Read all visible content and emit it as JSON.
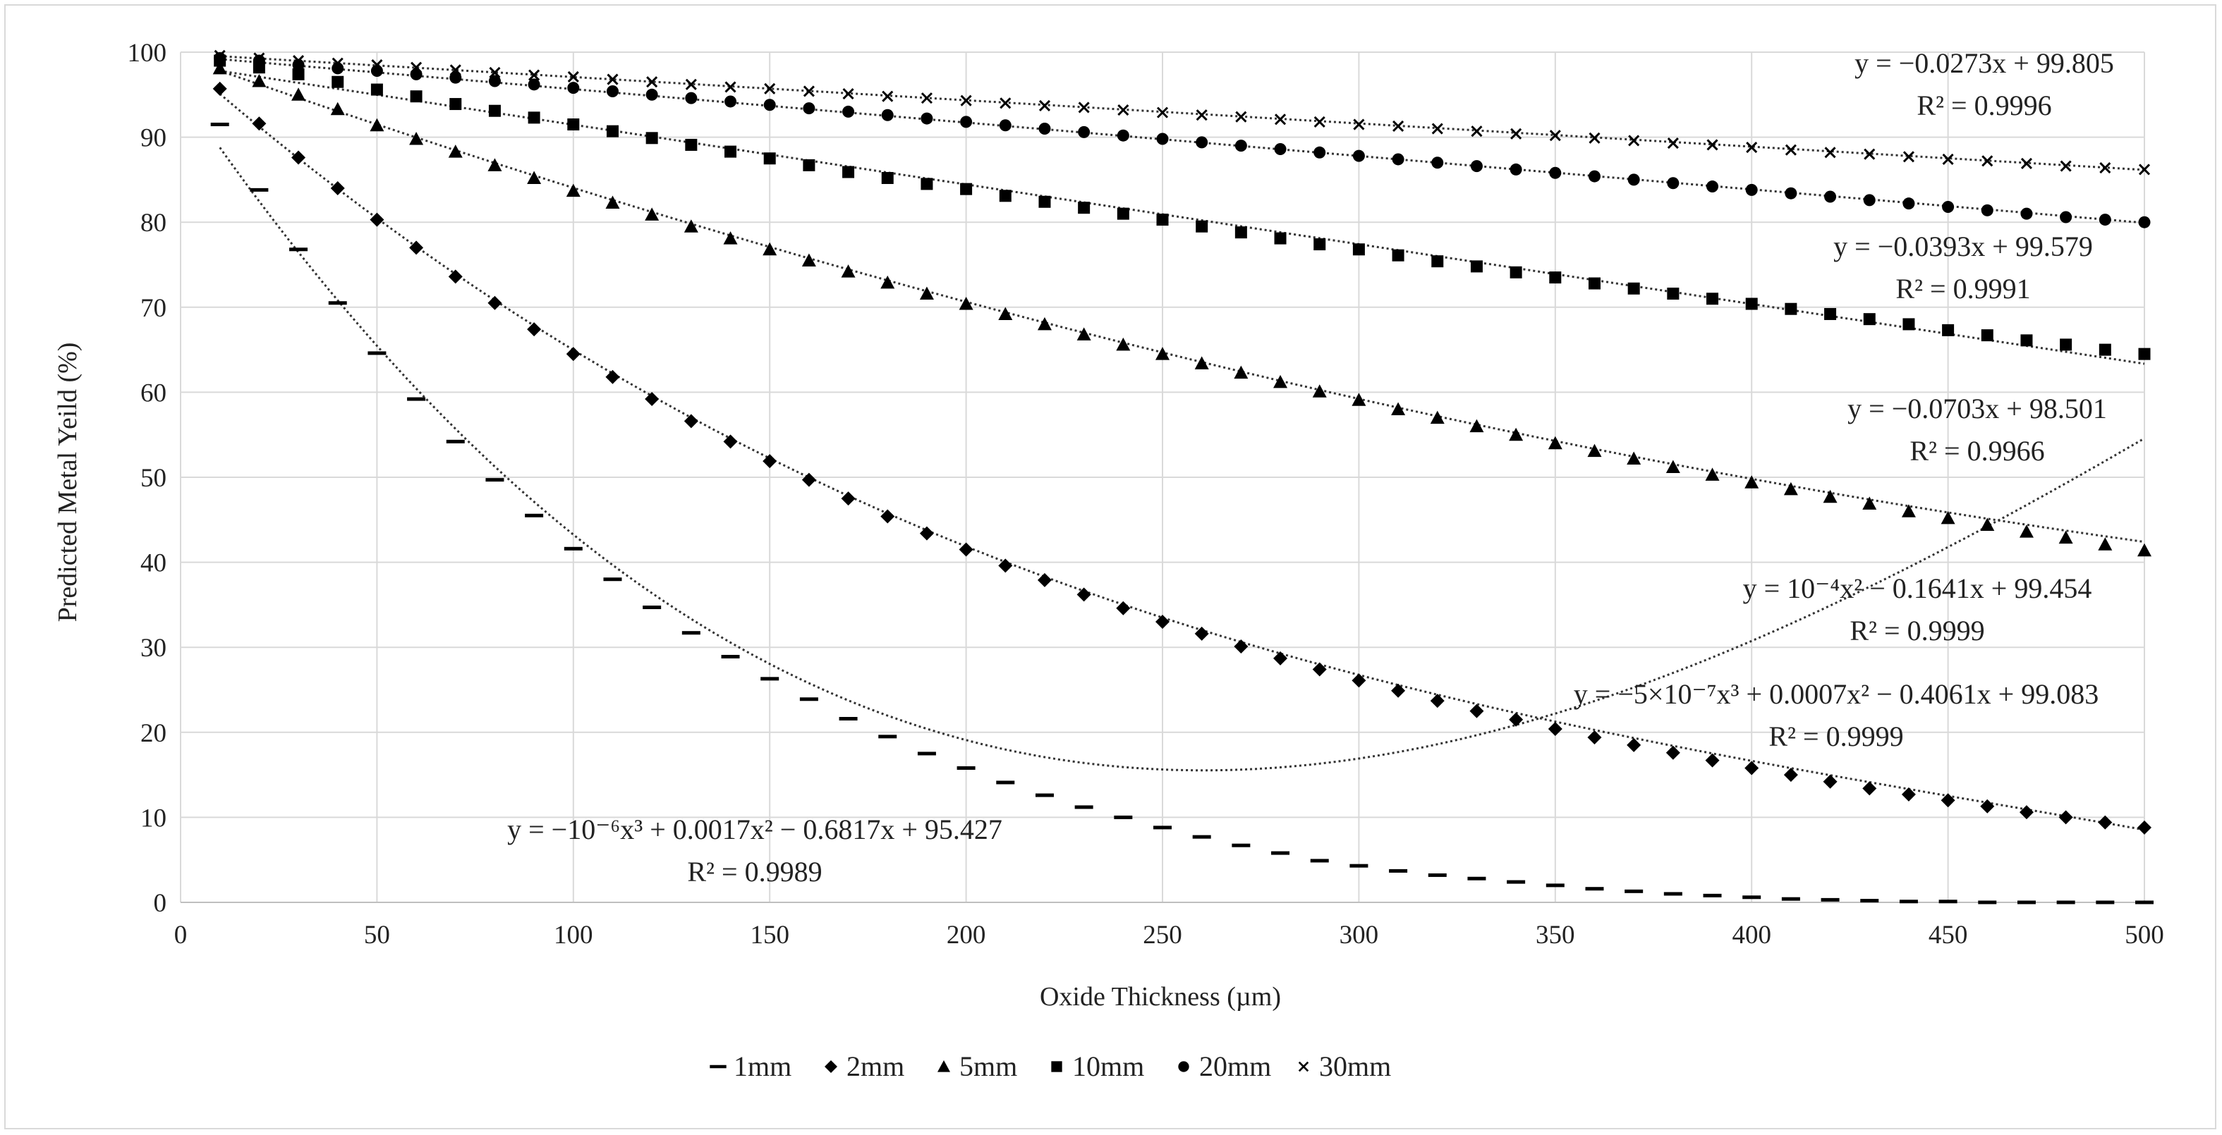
{
  "chart_data": {
    "type": "scatter",
    "title": "",
    "xlabel": "Oxide Thickness (µm)",
    "ylabel": "Predicted Metal Yeild (%)",
    "xlim": [
      0,
      500
    ],
    "ylim": [
      0,
      100
    ],
    "x_ticks": [
      "0",
      "50",
      "100",
      "150",
      "200",
      "250",
      "300",
      "350",
      "400",
      "450",
      "500"
    ],
    "y_ticks": [
      "0",
      "10",
      "20",
      "30",
      "40",
      "50",
      "60",
      "70",
      "80",
      "90",
      "100"
    ],
    "grid": "horizontal and vertical major gridlines",
    "legend_position": "bottom",
    "x": [
      10,
      20,
      30,
      40,
      50,
      60,
      70,
      80,
      90,
      100,
      110,
      120,
      130,
      140,
      150,
      160,
      170,
      180,
      190,
      200,
      210,
      220,
      230,
      240,
      250,
      260,
      270,
      280,
      290,
      300,
      310,
      320,
      330,
      340,
      350,
      360,
      370,
      380,
      390,
      400,
      410,
      420,
      430,
      440,
      450,
      460,
      470,
      480,
      490,
      500
    ],
    "series": [
      {
        "name": "1mm",
        "marker": "dash",
        "values": [
          91.5,
          83.8,
          76.8,
          70.5,
          64.6,
          59.2,
          54.2,
          49.7,
          45.5,
          41.6,
          38.0,
          34.7,
          31.7,
          28.9,
          26.3,
          23.9,
          21.6,
          19.5,
          17.5,
          15.8,
          14.1,
          12.6,
          11.2,
          10.0,
          8.8,
          7.7,
          6.7,
          5.8,
          4.9,
          4.3,
          3.7,
          3.2,
          2.8,
          2.4,
          2.0,
          1.6,
          1.3,
          1.0,
          0.8,
          0.6,
          0.4,
          0.3,
          0.2,
          0.1,
          0.1,
          0.0,
          0.0,
          0.0,
          0.0,
          0.0
        ],
        "trendline": "y = −10⁻⁶x³ + 0.0017x² − 0.6817x + 95.427",
        "r2": "R² = 0.9989"
      },
      {
        "name": "2mm",
        "marker": "diamond",
        "values": [
          95.7,
          91.6,
          87.6,
          84.0,
          80.3,
          77.0,
          73.6,
          70.5,
          67.4,
          64.5,
          61.8,
          59.2,
          56.6,
          54.2,
          51.9,
          49.7,
          47.5,
          45.4,
          43.4,
          41.5,
          39.6,
          37.9,
          36.2,
          34.6,
          33.0,
          31.6,
          30.1,
          28.7,
          27.4,
          26.1,
          24.9,
          23.7,
          22.5,
          21.5,
          20.4,
          19.4,
          18.5,
          17.6,
          16.7,
          15.8,
          15.0,
          14.2,
          13.4,
          12.7,
          12.0,
          11.3,
          10.6,
          10.0,
          9.4,
          8.8
        ],
        "trendline": "y = −5×10⁻⁷x³ + 0.0007x² − 0.4061x + 99.083",
        "r2": "R² = 0.9999"
      },
      {
        "name": "5mm",
        "marker": "triangle",
        "values": [
          98.1,
          96.6,
          95.0,
          93.3,
          91.4,
          89.8,
          88.3,
          86.7,
          85.2,
          83.7,
          82.3,
          80.9,
          79.5,
          78.1,
          76.8,
          75.5,
          74.2,
          72.9,
          71.6,
          70.4,
          69.2,
          68.0,
          66.8,
          65.6,
          64.5,
          63.4,
          62.3,
          61.2,
          60.1,
          59.1,
          58.0,
          57.0,
          56.0,
          55.0,
          54.0,
          53.1,
          52.2,
          51.2,
          50.3,
          49.4,
          48.6,
          47.7,
          46.9,
          46.0,
          45.2,
          44.4,
          43.6,
          42.9,
          42.1,
          41.4
        ],
        "trendline": "y = 10⁻⁴x² − 0.1641x + 99.454",
        "r2": "R² = 0.9999"
      },
      {
        "name": "10mm",
        "marker": "square",
        "values": [
          99.0,
          98.2,
          97.4,
          96.5,
          95.6,
          94.8,
          93.9,
          93.1,
          92.3,
          91.5,
          90.7,
          89.9,
          89.1,
          88.3,
          87.5,
          86.7,
          85.9,
          85.2,
          84.5,
          83.9,
          83.1,
          82.4,
          81.7,
          81.0,
          80.3,
          79.5,
          78.8,
          78.1,
          77.4,
          76.8,
          76.1,
          75.4,
          74.8,
          74.1,
          73.5,
          72.8,
          72.2,
          71.6,
          71.0,
          70.4,
          69.8,
          69.2,
          68.6,
          68.0,
          67.3,
          66.7,
          66.1,
          65.6,
          65.0,
          64.5
        ],
        "trendline": "y = −0.0703x + 98.501",
        "r2": "R² = 0.9966"
      },
      {
        "name": "20mm",
        "marker": "circle",
        "values": [
          99.3,
          99.0,
          98.5,
          98.1,
          97.8,
          97.4,
          97.0,
          96.6,
          96.2,
          95.8,
          95.4,
          95.0,
          94.6,
          94.2,
          93.8,
          93.4,
          93.0,
          92.6,
          92.2,
          91.8,
          91.4,
          91.0,
          90.6,
          90.2,
          89.8,
          89.4,
          89.0,
          88.6,
          88.2,
          87.8,
          87.4,
          87.0,
          86.6,
          86.2,
          85.8,
          85.4,
          85.0,
          84.6,
          84.2,
          83.8,
          83.4,
          83.0,
          82.6,
          82.2,
          81.8,
          81.4,
          81.0,
          80.6,
          80.3,
          80.0
        ],
        "trendline": "y = −0.0393x + 99.579",
        "r2": "R² = 0.9991"
      },
      {
        "name": "30mm",
        "marker": "x",
        "values": [
          99.6,
          99.3,
          99.0,
          98.7,
          98.5,
          98.2,
          97.9,
          97.6,
          97.3,
          97.1,
          96.8,
          96.5,
          96.2,
          95.9,
          95.7,
          95.4,
          95.1,
          94.8,
          94.6,
          94.3,
          94.0,
          93.7,
          93.5,
          93.2,
          92.9,
          92.6,
          92.4,
          92.1,
          91.8,
          91.5,
          91.3,
          91.0,
          90.7,
          90.4,
          90.2,
          89.9,
          89.6,
          89.3,
          89.1,
          88.8,
          88.5,
          88.2,
          88.0,
          87.7,
          87.4,
          87.2,
          86.9,
          86.6,
          86.4,
          86.2
        ],
        "trendline": "y = −0.0273x + 99.805",
        "r2": "R² = 0.9996"
      }
    ]
  }
}
